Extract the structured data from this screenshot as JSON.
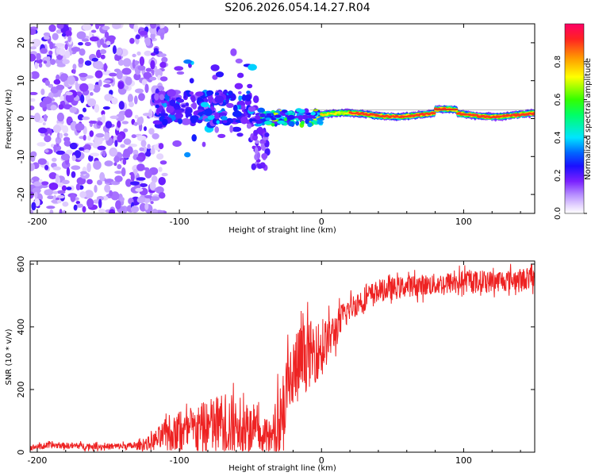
{
  "title": "S206.2026.054.14.27.R04",
  "chart_data": [
    {
      "type": "heatmap",
      "name": "spectrogram",
      "xlabel": "Height of straight line (km)",
      "ylabel": "Frequency (Hz)",
      "xlim": [
        -205,
        150
      ],
      "ylim": [
        -25,
        25
      ],
      "xticks": [
        -200,
        -100,
        0,
        100
      ],
      "yticks": [
        -20,
        -10,
        0,
        10,
        20
      ],
      "xticklabels": [
        "-200",
        "-100",
        "0",
        "100"
      ],
      "yticklabels": [
        "-20",
        "-10",
        "0",
        "10",
        "20"
      ],
      "colorbar": {
        "label": "Normalized spectral amplitude",
        "range": [
          0,
          1
        ],
        "ticks": [
          0.0,
          0.2,
          0.4,
          0.6,
          0.8
        ],
        "ticklabels": [
          "0.0",
          "0.2",
          "0.4",
          "0.6",
          "0.8"
        ]
      },
      "features": [
        {
          "x_range": [
            -205,
            -115
          ],
          "freq_range": [
            -25,
            25
          ],
          "amplitude": 0.08,
          "description": "diffuse noise"
        },
        {
          "x_range": [
            -115,
            -45
          ],
          "freq_center": 3,
          "freq_spread": 3,
          "amplitude": 0.2
        },
        {
          "x_range": [
            -45,
            0
          ],
          "freq_center": 0,
          "freq_spread": 1.5,
          "amplitude": 0.4
        },
        {
          "x_range": [
            0,
            150
          ],
          "freq_center": 1,
          "freq_spread": 1,
          "amplitude": 0.95
        }
      ]
    },
    {
      "type": "line",
      "name": "snr",
      "xlabel": "Height of straight line (km)",
      "ylabel": "SNR (10 * v/v)",
      "xlim": [
        -205,
        150
      ],
      "ylim": [
        0,
        610
      ],
      "xticks": [
        -200,
        -100,
        0,
        100
      ],
      "yticks": [
        0,
        200,
        400,
        600
      ],
      "xticklabels": [
        "-200",
        "-100",
        "0",
        "100"
      ],
      "yticklabels": [
        "0",
        "200",
        "400",
        "600"
      ],
      "color": "#ee2222",
      "series": [
        {
          "name": "SNR",
          "x": [
            -205,
            -190,
            -170,
            -150,
            -130,
            -120,
            -110,
            -100,
            -90,
            -80,
            -70,
            -60,
            -50,
            -40,
            -35,
            -30,
            -25,
            -20,
            -15,
            -10,
            -5,
            0,
            5,
            10,
            15,
            20,
            30,
            40,
            50,
            60,
            80,
            100,
            120,
            150
          ],
          "y": [
            15,
            22,
            20,
            18,
            20,
            30,
            55,
            60,
            70,
            80,
            90,
            85,
            70,
            50,
            45,
            110,
            180,
            240,
            290,
            310,
            320,
            330,
            360,
            390,
            430,
            460,
            490,
            515,
            520,
            530,
            535,
            545,
            545,
            555
          ],
          "noise_amplitude": [
            8,
            10,
            10,
            10,
            12,
            25,
            50,
            60,
            70,
            90,
            100,
            100,
            80,
            60,
            50,
            120,
            130,
            140,
            120,
            110,
            100,
            90,
            70,
            60,
            50,
            40,
            40,
            35,
            35,
            35,
            35,
            35,
            35,
            35
          ]
        }
      ]
    }
  ]
}
